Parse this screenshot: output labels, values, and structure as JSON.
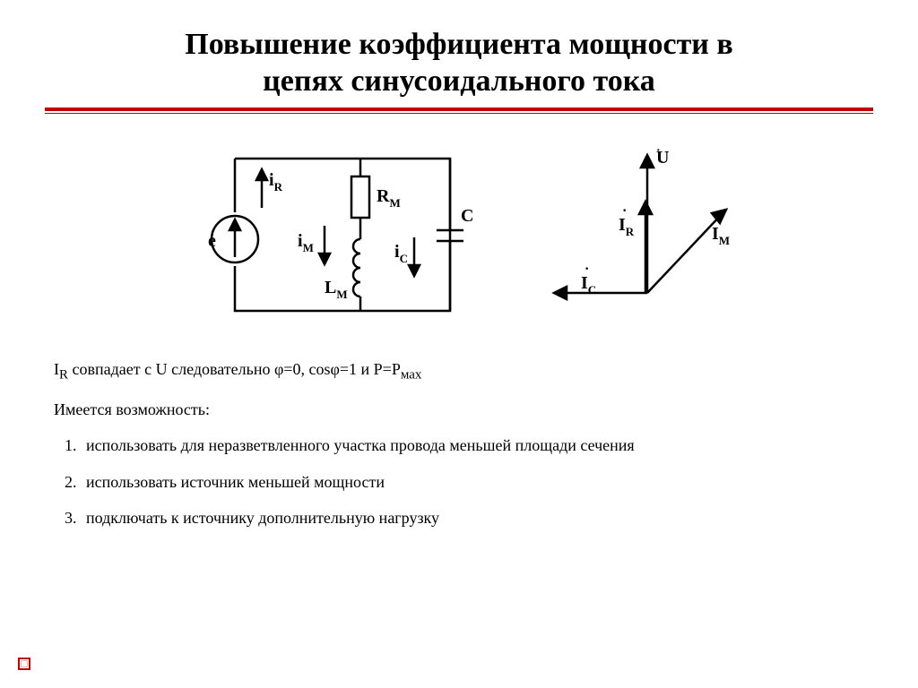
{
  "title_line1": "Повышение коэффициента мощности в",
  "title_line2": "цепях синусоидального тока",
  "colors": {
    "accent": "#c00000",
    "text": "#000000",
    "background": "#ffffff"
  },
  "circuit": {
    "labels": {
      "e": "e",
      "iR": "i",
      "iR_sub": "R",
      "RM": "R",
      "RM_sub": "M",
      "iM": "i",
      "iM_sub": "M",
      "LM": "L",
      "LM_sub": "M",
      "iC": "i",
      "iC_sub": "C",
      "C": "C"
    }
  },
  "vector": {
    "U": "U",
    "IR": "I",
    "IR_sub": "R",
    "IM": "I",
    "IM_sub": "M",
    "IC": "I",
    "IC_sub": "C"
  },
  "statement": "I<sub>R</sub> совпадает с U следовательно φ=0, cosφ=1 и P=P<sub>мах</sub>",
  "possibility_intro": "Имеется возможность:",
  "items": [
    "использовать для неразветвленного участка провода меньшей площади сечения",
    "использовать источник меньшей мощности",
    "подключать к источнику дополнительную нагрузку"
  ]
}
